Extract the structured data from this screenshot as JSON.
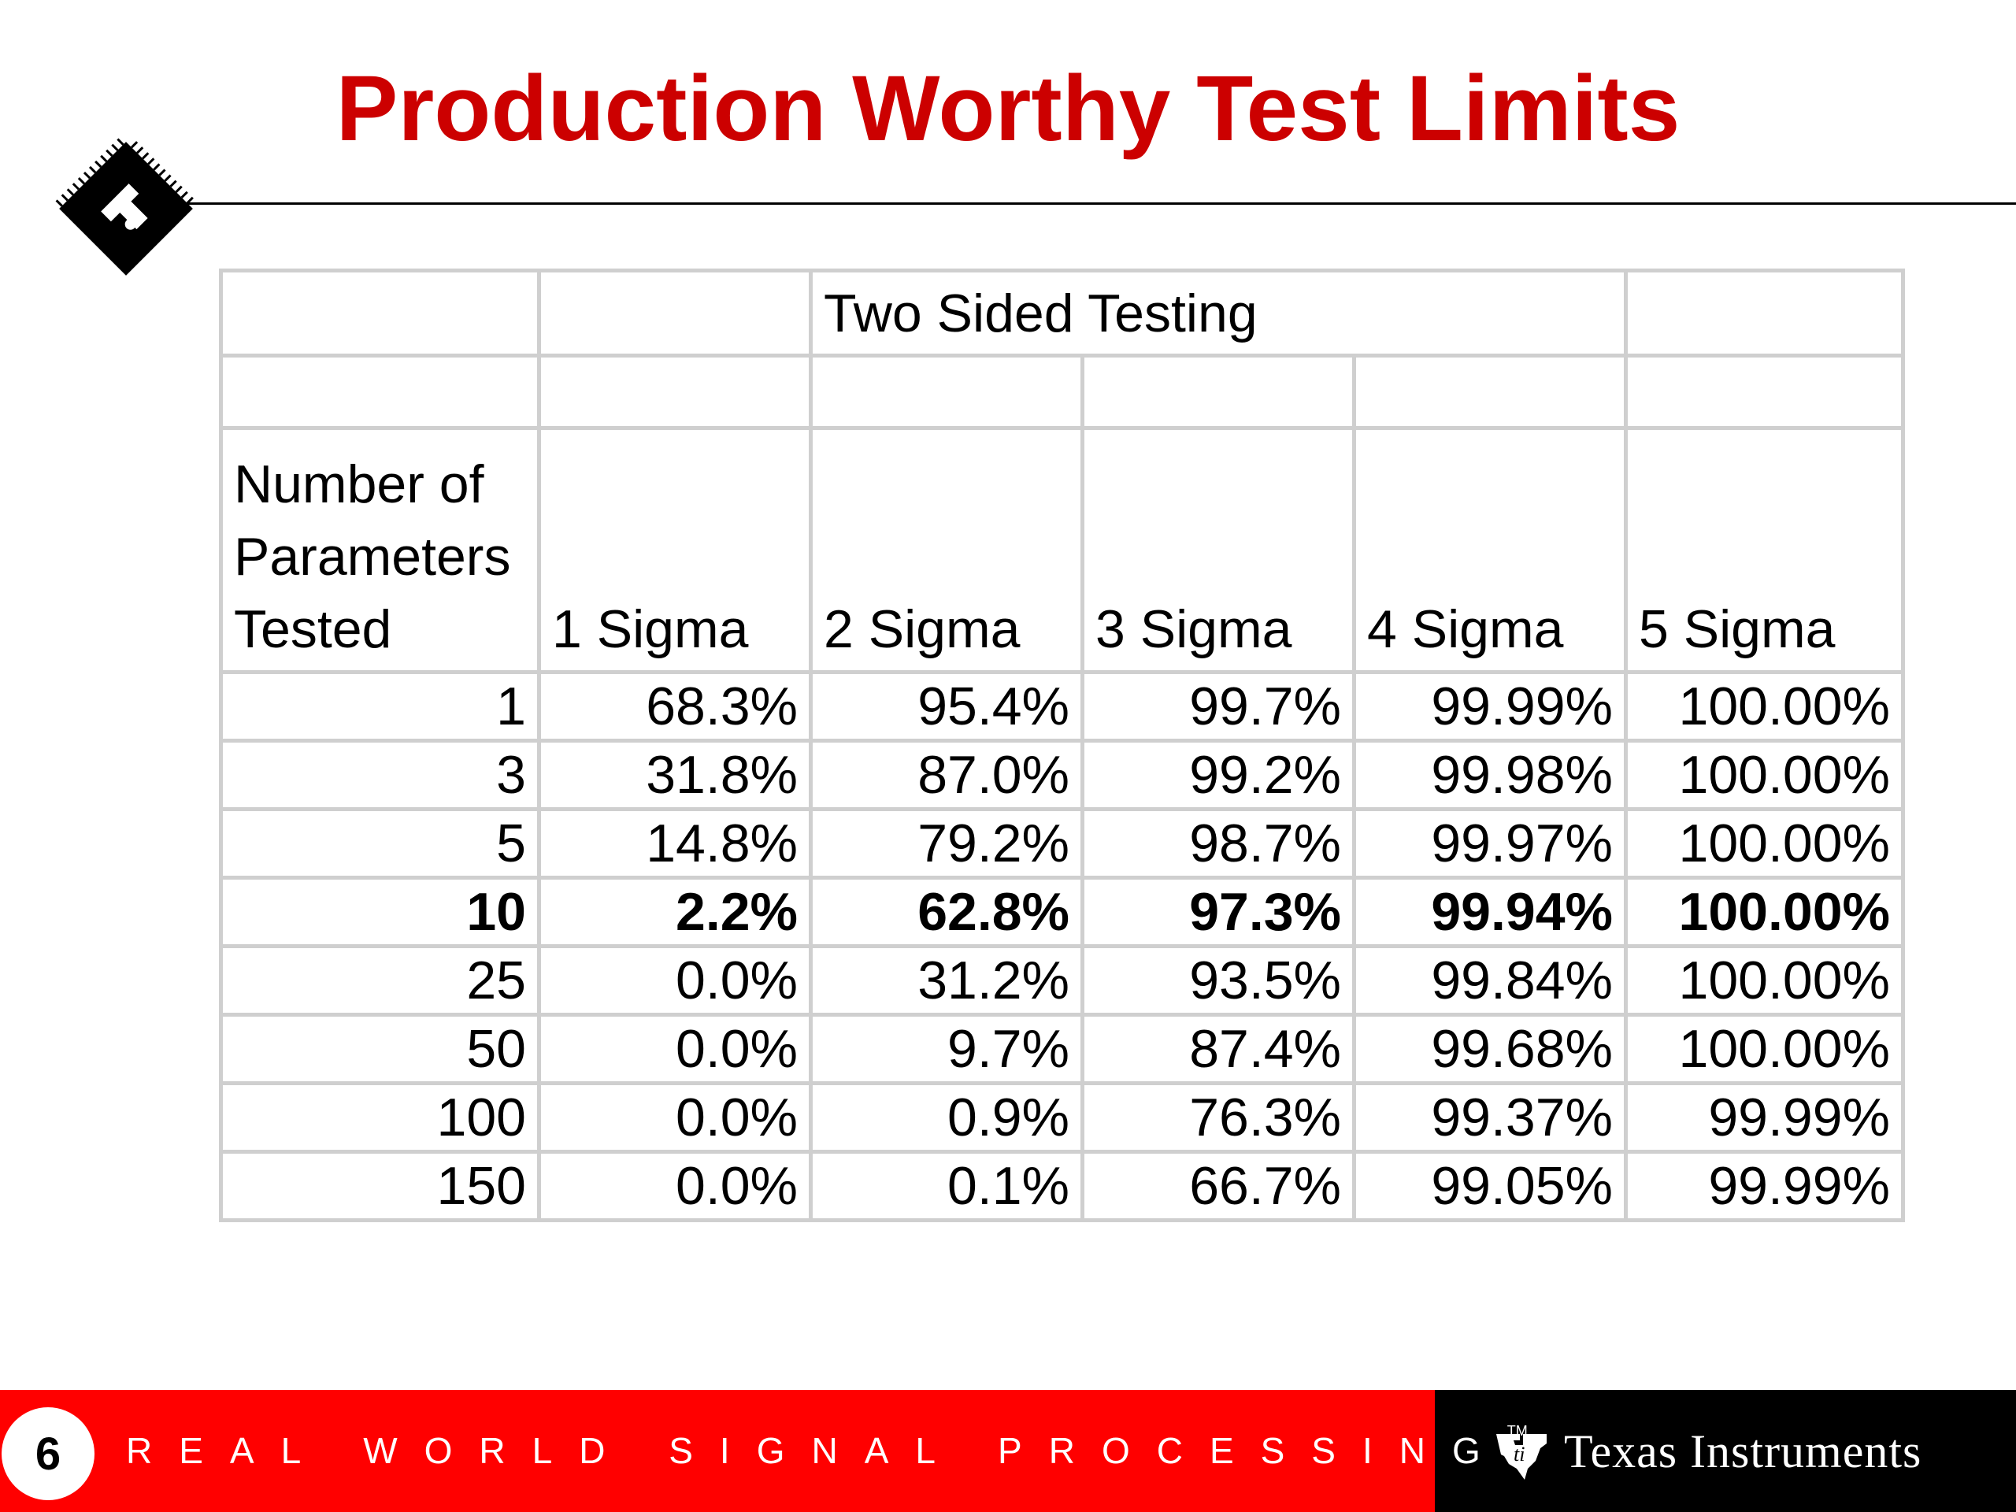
{
  "slide": {
    "title": "Production Worthy Test Limits",
    "page_number": "6"
  },
  "table": {
    "section_header": "Two Sided Testing",
    "row_header_label": "Number of\nParameters\nTested",
    "columns": [
      "1 Sigma",
      "2 Sigma",
      "3 Sigma",
      "4 Sigma",
      "5 Sigma"
    ],
    "rows": [
      {
        "n": "1",
        "values": [
          "68.3%",
          "95.4%",
          "99.7%",
          "99.99%",
          "100.00%"
        ],
        "highlight": false
      },
      {
        "n": "3",
        "values": [
          "31.8%",
          "87.0%",
          "99.2%",
          "99.98%",
          "100.00%"
        ],
        "highlight": false
      },
      {
        "n": "5",
        "values": [
          "14.8%",
          "79.2%",
          "98.7%",
          "99.97%",
          "100.00%"
        ],
        "highlight": false
      },
      {
        "n": "10",
        "values": [
          "2.2%",
          "62.8%",
          "97.3%",
          "99.94%",
          "100.00%"
        ],
        "highlight": true
      },
      {
        "n": "25",
        "values": [
          "0.0%",
          "31.2%",
          "93.5%",
          "99.84%",
          "100.00%"
        ],
        "highlight": false
      },
      {
        "n": "50",
        "values": [
          "0.0%",
          "9.7%",
          "87.4%",
          "99.68%",
          "100.00%"
        ],
        "highlight": false
      },
      {
        "n": "100",
        "values": [
          "0.0%",
          "0.9%",
          "76.3%",
          "99.37%",
          "99.99%"
        ],
        "highlight": false
      },
      {
        "n": "150",
        "values": [
          "0.0%",
          "0.1%",
          "66.7%",
          "99.05%",
          "99.99%"
        ],
        "highlight": false
      }
    ]
  },
  "footer": {
    "tagline": "REAL WORLD SIGNAL PROCESSING",
    "trademark": "TM",
    "brand": "Texas Instruments"
  },
  "colors": {
    "title": "#cc0000",
    "footer_red": "#ff0000",
    "footer_black": "#000000",
    "grid": "#cfcfcf"
  },
  "icons": [
    "chip-logo-icon",
    "ti-logo-icon"
  ]
}
